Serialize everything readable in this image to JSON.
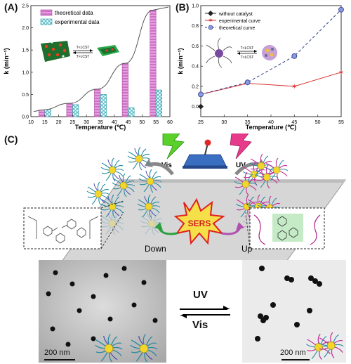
{
  "panels": {
    "a_label": "(A)",
    "b_label": "(B)",
    "c_label": "(C)"
  },
  "chart_data": [
    {
      "type": "bar",
      "panel": "A",
      "xlabel": "Temperature (℃)",
      "ylabel": "k (min⁻¹)",
      "xlim": [
        10,
        60
      ],
      "ylim": [
        0.0,
        2.5
      ],
      "xticks": [
        "10",
        "15",
        "20",
        "25",
        "30",
        "35",
        "40",
        "45",
        "50",
        "55",
        "60"
      ],
      "yticks": [
        "0.0",
        "0.5",
        "1.0",
        "1.5",
        "2.0",
        "2.5"
      ],
      "categories": [
        "15",
        "25",
        "35",
        "45",
        "55"
      ],
      "series": [
        {
          "name": "theoretical data",
          "values": [
            0.15,
            0.3,
            0.62,
            1.2,
            2.4
          ],
          "color": "#d070c8",
          "pattern": "hatch"
        },
        {
          "name": "experimental data",
          "values": [
            0.16,
            0.27,
            0.5,
            0.2,
            0.6
          ],
          "color": "#50c0c8",
          "pattern": "cross"
        }
      ],
      "legend_position": "top-left",
      "inset": {
        "above": "T<LCST",
        "below": "T>LCST"
      }
    },
    {
      "type": "line",
      "panel": "B",
      "xlabel": "Temperature (℃)",
      "ylabel": "k (min⁻¹)",
      "xlim": [
        25,
        55
      ],
      "ylim": [
        -0.1,
        1.0
      ],
      "xticks": [
        "25",
        "30",
        "35",
        "40",
        "45",
        "50",
        "55"
      ],
      "yticks": [
        "0.0",
        "0.2",
        "0.4",
        "0.6",
        "0.8",
        "1.0"
      ],
      "series": [
        {
          "name": "without catalyst",
          "x": [
            25
          ],
          "y": [
            0.0
          ],
          "color": "#222222",
          "marker": "diamond",
          "dash": "solid"
        },
        {
          "name": "experimental curve",
          "x": [
            25,
            35,
            45,
            55
          ],
          "y": [
            0.12,
            0.23,
            0.2,
            0.34
          ],
          "color": "#d83030",
          "marker": "star",
          "dash": "solid"
        },
        {
          "name": "theoretical curve",
          "x": [
            25,
            35,
            45,
            55
          ],
          "y": [
            0.12,
            0.24,
            0.5,
            0.96
          ],
          "color": "#2a3a8a",
          "marker": "circle",
          "dash": "dashed"
        }
      ],
      "legend_position": "top-left",
      "inset": {
        "above": "T<LCST",
        "below": "T>LCST"
      }
    }
  ],
  "panel_c": {
    "vis_label": "Vis",
    "uv_label": "UV",
    "down_label": "Down",
    "up_label": "Up",
    "sers_label": "SERS",
    "tem_scale_left": "200 nm",
    "tem_scale_right": "200 nm",
    "switch_uv": "UV",
    "switch_vis": "Vis",
    "colors": {
      "azo_green": "#2ca02c",
      "uv_magenta": "#d0308a",
      "sers_red": "#e02020",
      "sers_yellow": "#f6e04a"
    }
  }
}
